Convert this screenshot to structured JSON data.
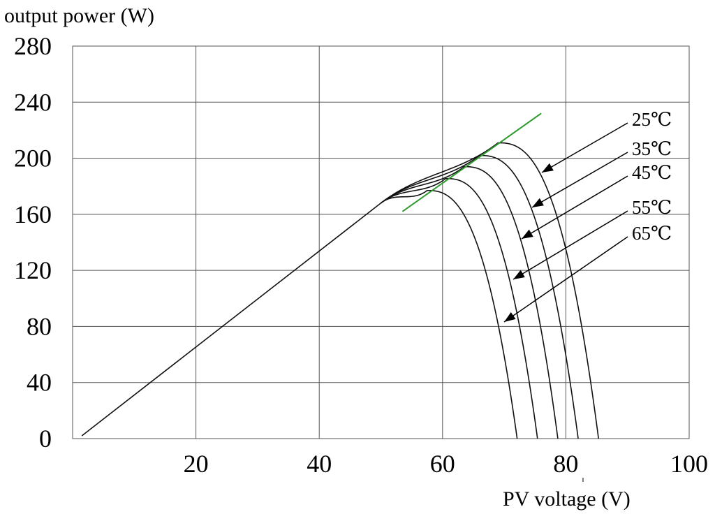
{
  "chart_data": {
    "type": "line",
    "ylabel": "output power (W)",
    "xlabel": "PV voltage (V)",
    "xlim": [
      0,
      100
    ],
    "ylim": [
      0,
      280
    ],
    "x_ticks": [
      "20",
      "40",
      "60",
      "80",
      "100"
    ],
    "y_ticks": [
      "0",
      "40",
      "80",
      "120",
      "160",
      "200",
      "240",
      "280"
    ],
    "grid": true,
    "series": [
      {
        "name": "25℃",
        "pmax_voltage": 69,
        "pmax_power": 211,
        "open_circuit_voltage": 85.3
      },
      {
        "name": "35℃",
        "pmax_voltage": 66,
        "pmax_power": 202,
        "open_circuit_voltage": 82
      },
      {
        "name": "45℃",
        "pmax_voltage": 63.5,
        "pmax_power": 194,
        "open_circuit_voltage": 78.7
      },
      {
        "name": "55℃",
        "pmax_voltage": 60.5,
        "pmax_power": 185.5,
        "open_circuit_voltage": 75.4
      },
      {
        "name": "65℃",
        "pmax_voltage": 57.5,
        "pmax_power": 177,
        "open_circuit_voltage": 72.1
      }
    ],
    "shared_segment": {
      "x": [
        1.5,
        50
      ],
      "y": [
        2,
        168
      ]
    },
    "mpp_line": {
      "x": [
        53.5,
        76
      ],
      "y": [
        162,
        232
      ],
      "color": "#2e9a2e"
    },
    "curve_labels": [
      "25℃",
      "35℃",
      "45℃",
      "55℃",
      "65℃"
    ]
  }
}
